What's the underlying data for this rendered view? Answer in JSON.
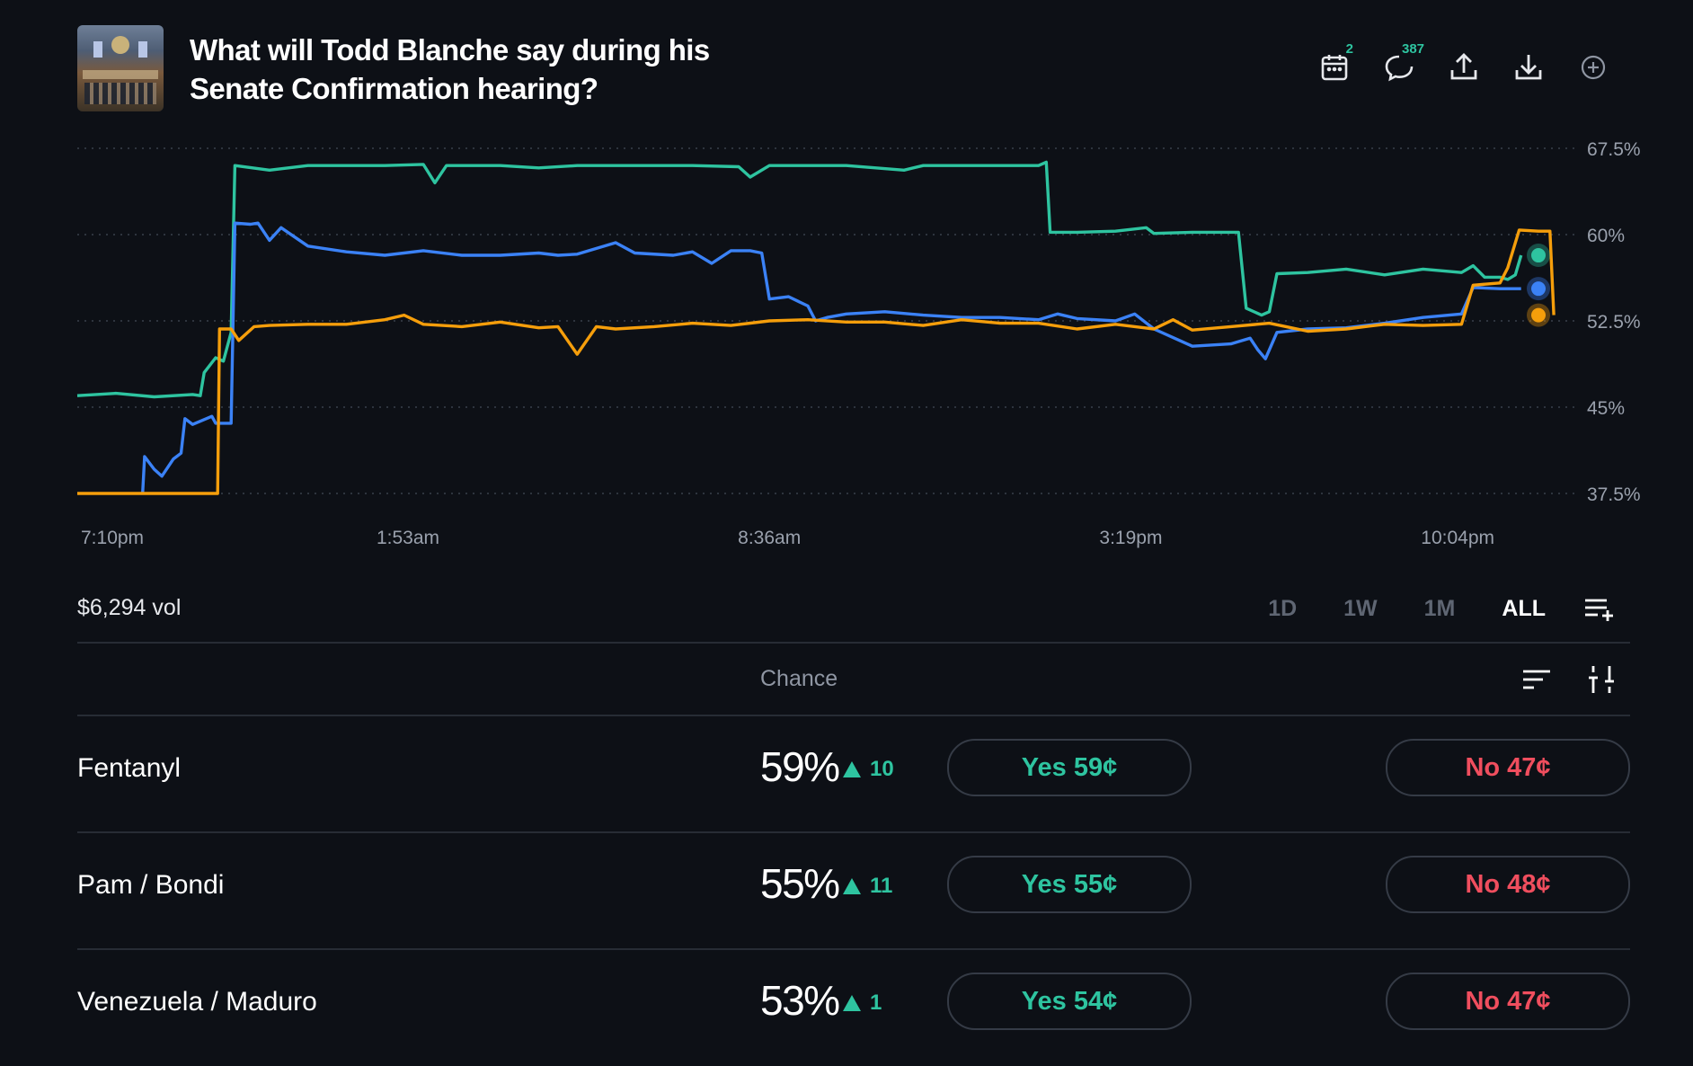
{
  "header": {
    "title": "What will Todd Blanche say during his Senate Confirmation hearing?",
    "icons": [
      {
        "name": "calendar-icon",
        "badge": "2"
      },
      {
        "name": "comment-icon",
        "badge": "387"
      },
      {
        "name": "share-icon",
        "badge": ""
      },
      {
        "name": "download-icon",
        "badge": ""
      },
      {
        "name": "add-icon",
        "badge": ""
      }
    ]
  },
  "chart_data": {
    "type": "line",
    "ylim": [
      37.5,
      67.5
    ],
    "y_ticks": [
      "67.5%",
      "60%",
      "52.5%",
      "45%",
      "37.5%"
    ],
    "y_tick_values": [
      67.5,
      60,
      52.5,
      45,
      37.5
    ],
    "x_ticks": [
      "7:10pm",
      "1:53am",
      "8:36am",
      "3:19pm",
      "10:04pm"
    ],
    "x_tick_values": [
      0.2,
      8.6,
      18.0,
      27.4,
      35.9
    ],
    "xlim": [
      0,
      38
    ],
    "grid": true,
    "series": [
      {
        "color": "#2ec4a0",
        "points": [
          [
            0,
            46
          ],
          [
            1,
            46.2
          ],
          [
            2,
            45.9
          ],
          [
            3,
            46.1
          ],
          [
            3.2,
            46
          ],
          [
            3.3,
            48
          ],
          [
            3.6,
            49.3
          ],
          [
            3.8,
            49
          ],
          [
            4,
            51.5
          ],
          [
            4.1,
            66
          ],
          [
            5,
            65.6
          ],
          [
            6,
            66
          ],
          [
            8,
            66
          ],
          [
            9,
            66.1
          ],
          [
            9.3,
            64.5
          ],
          [
            9.6,
            66
          ],
          [
            11,
            66
          ],
          [
            12,
            65.8
          ],
          [
            13,
            66
          ],
          [
            15,
            66
          ],
          [
            16,
            66
          ],
          [
            17.2,
            65.9
          ],
          [
            17.5,
            65
          ],
          [
            18,
            66
          ],
          [
            20,
            66
          ],
          [
            21.5,
            65.6
          ],
          [
            22,
            66
          ],
          [
            24,
            66
          ],
          [
            25,
            66
          ],
          [
            25.2,
            66.3
          ],
          [
            25.3,
            60.2
          ],
          [
            26,
            60.2
          ],
          [
            27,
            60.3
          ],
          [
            27.8,
            60.6
          ],
          [
            28,
            60.1
          ],
          [
            29,
            60.2
          ],
          [
            30.2,
            60.2
          ],
          [
            30.4,
            53.6
          ],
          [
            30.8,
            53
          ],
          [
            31,
            53.3
          ],
          [
            31.2,
            56.6
          ],
          [
            32,
            56.7
          ],
          [
            33,
            57
          ],
          [
            34,
            56.5
          ],
          [
            35,
            57
          ],
          [
            36,
            56.7
          ],
          [
            36.3,
            57.3
          ],
          [
            36.6,
            56.3
          ],
          [
            37,
            56.3
          ],
          [
            37.2,
            56.1
          ],
          [
            37.4,
            56.5
          ],
          [
            37.55,
            58.2
          ]
        ]
      },
      {
        "color": "#3b82f6",
        "points": [
          [
            1.7,
            37.5
          ],
          [
            1.75,
            40.7
          ],
          [
            2,
            39.6
          ],
          [
            2.2,
            39
          ],
          [
            2.5,
            40.5
          ],
          [
            2.7,
            41
          ],
          [
            2.8,
            44
          ],
          [
            3,
            43.5
          ],
          [
            3.5,
            44.2
          ],
          [
            3.6,
            43.6
          ],
          [
            4,
            43.6
          ],
          [
            4.1,
            61
          ],
          [
            4.5,
            60.9
          ],
          [
            4.7,
            61
          ],
          [
            5,
            59.5
          ],
          [
            5.3,
            60.6
          ],
          [
            6,
            59
          ],
          [
            7,
            58.5
          ],
          [
            8,
            58.2
          ],
          [
            9,
            58.6
          ],
          [
            10,
            58.2
          ],
          [
            11,
            58.2
          ],
          [
            12,
            58.4
          ],
          [
            12.5,
            58.2
          ],
          [
            13,
            58.3
          ],
          [
            14,
            59.3
          ],
          [
            14.5,
            58.4
          ],
          [
            15.5,
            58.2
          ],
          [
            16,
            58.5
          ],
          [
            16.5,
            57.5
          ],
          [
            17,
            58.6
          ],
          [
            17.5,
            58.6
          ],
          [
            17.8,
            58.4
          ],
          [
            18,
            54.4
          ],
          [
            18.5,
            54.6
          ],
          [
            19,
            53.8
          ],
          [
            19.2,
            52.5
          ],
          [
            19.5,
            52.8
          ],
          [
            20,
            53.1
          ],
          [
            21,
            53.3
          ],
          [
            22,
            53
          ],
          [
            23,
            52.8
          ],
          [
            24,
            52.8
          ],
          [
            25,
            52.6
          ],
          [
            25.5,
            53.1
          ],
          [
            26,
            52.7
          ],
          [
            27,
            52.5
          ],
          [
            27.5,
            53.1
          ],
          [
            28,
            51.8
          ],
          [
            29,
            50.3
          ],
          [
            30,
            50.5
          ],
          [
            30.5,
            51
          ],
          [
            30.7,
            50
          ],
          [
            30.9,
            49.2
          ],
          [
            31.2,
            51.5
          ],
          [
            32,
            51.8
          ],
          [
            33,
            51.9
          ],
          [
            34,
            52.3
          ],
          [
            35,
            52.8
          ],
          [
            36,
            53.1
          ],
          [
            36.3,
            55.4
          ],
          [
            37,
            55.3
          ],
          [
            37.55,
            55.3
          ]
        ]
      },
      {
        "color": "#f59e0b",
        "points": [
          [
            0,
            37.5
          ],
          [
            3.65,
            37.5
          ],
          [
            3.7,
            51.8
          ],
          [
            4,
            51.8
          ],
          [
            4.2,
            50.8
          ],
          [
            4.6,
            52
          ],
          [
            5,
            52.1
          ],
          [
            6,
            52.2
          ],
          [
            7,
            52.2
          ],
          [
            8,
            52.6
          ],
          [
            8.5,
            53
          ],
          [
            9,
            52.2
          ],
          [
            10,
            52
          ],
          [
            11,
            52.4
          ],
          [
            12,
            51.9
          ],
          [
            12.5,
            52
          ],
          [
            13,
            49.6
          ],
          [
            13.5,
            52
          ],
          [
            14,
            51.8
          ],
          [
            15,
            52
          ],
          [
            16,
            52.3
          ],
          [
            17,
            52.1
          ],
          [
            18,
            52.5
          ],
          [
            19,
            52.6
          ],
          [
            20,
            52.4
          ],
          [
            21,
            52.4
          ],
          [
            22,
            52.1
          ],
          [
            23,
            52.6
          ],
          [
            24,
            52.3
          ],
          [
            25,
            52.3
          ],
          [
            26,
            51.8
          ],
          [
            27,
            52.2
          ],
          [
            28,
            51.8
          ],
          [
            28.5,
            52.6
          ],
          [
            29,
            51.7
          ],
          [
            30,
            52
          ],
          [
            31,
            52.3
          ],
          [
            32,
            51.6
          ],
          [
            33,
            51.8
          ],
          [
            34,
            52.2
          ],
          [
            35,
            52.1
          ],
          [
            36,
            52.2
          ],
          [
            36.3,
            55.6
          ],
          [
            37,
            55.8
          ],
          [
            37.2,
            57.1
          ],
          [
            37.5,
            60.4
          ],
          [
            38,
            60.3
          ],
          [
            38.3,
            60.3
          ],
          [
            38.4,
            53
          ]
        ]
      }
    ]
  },
  "controls": {
    "volume": "$6,294 vol",
    "ranges": [
      "1D",
      "1W",
      "1M",
      "ALL"
    ],
    "active_range": "ALL"
  },
  "table": {
    "chance_header": "Chance",
    "rows": [
      {
        "name": "Fentanyl",
        "chance": "59%",
        "delta": "10",
        "yes": "Yes 59¢",
        "no": "No 47¢"
      },
      {
        "name": "Pam / Bondi",
        "chance": "55%",
        "delta": "11",
        "yes": "Yes 55¢",
        "no": "No 48¢"
      },
      {
        "name": "Venezuela / Maduro",
        "chance": "53%",
        "delta": "1",
        "yes": "Yes 54¢",
        "no": "No 47¢"
      }
    ]
  },
  "colors": {
    "background": "#0d1016",
    "yes": "#2ec4a0",
    "no": "#f04e5e",
    "series1": "#2ec4a0",
    "series2": "#3b82f6",
    "series3": "#f59e0b"
  }
}
